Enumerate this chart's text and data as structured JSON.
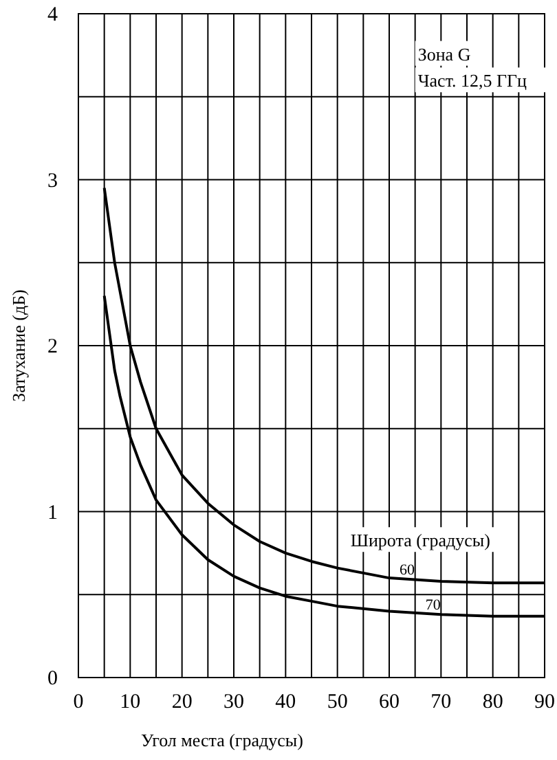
{
  "chart_data": {
    "type": "line",
    "xlabel": "Угол места (градусы)",
    "ylabel": "Затухание (дБ)",
    "annotations": [
      "Зона G",
      "Част. 12,5 ГГц",
      "Широта (градусы)"
    ],
    "xlim": [
      0,
      90
    ],
    "ylim": [
      0,
      4
    ],
    "xticks": [
      0,
      {
        "value": 5,
        "label": null
      },
      10,
      {
        "value": 15,
        "label": null
      },
      20,
      {
        "value": 25,
        "label": null
      },
      30,
      {
        "value": 35,
        "label": null
      },
      40,
      {
        "value": 45,
        "label": null
      },
      50,
      {
        "value": 55,
        "label": null
      },
      60,
      {
        "value": 65,
        "label": null
      },
      70,
      {
        "value": 75,
        "label": null
      },
      80,
      {
        "value": 85,
        "label": null
      },
      90
    ],
    "yticks": [
      0,
      {
        "value": 0.5,
        "label": null
      },
      1,
      {
        "value": 1.5,
        "label": null
      },
      2,
      {
        "value": 2.5,
        "label": null
      },
      3,
      {
        "value": 3.5,
        "label": null
      },
      4
    ],
    "grid": true,
    "marker": "none",
    "line_style": "solid",
    "series": [
      {
        "name": "60",
        "color": "#000000",
        "x": [
          5,
          7,
          10,
          12,
          15,
          20,
          25,
          30,
          35,
          40,
          45,
          50,
          55,
          60,
          70,
          80,
          90
        ],
        "values": [
          2.95,
          2.5,
          2.0,
          1.78,
          1.5,
          1.22,
          1.05,
          0.92,
          0.82,
          0.75,
          0.7,
          0.66,
          0.63,
          0.6,
          0.58,
          0.57,
          0.57
        ]
      },
      {
        "name": "70",
        "color": "#000000",
        "x": [
          5,
          7,
          8,
          10,
          12,
          15,
          20,
          25,
          30,
          35,
          40,
          45,
          50,
          60,
          70,
          80,
          90
        ],
        "values": [
          2.3,
          1.85,
          1.7,
          1.45,
          1.28,
          1.07,
          0.86,
          0.71,
          0.61,
          0.54,
          0.49,
          0.46,
          0.43,
          0.4,
          0.38,
          0.37,
          0.37
        ]
      }
    ]
  }
}
